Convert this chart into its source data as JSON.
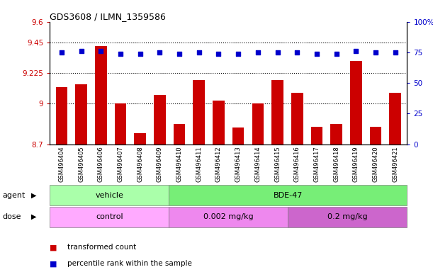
{
  "title": "GDS3608 / ILMN_1359586",
  "samples": [
    "GSM496404",
    "GSM496405",
    "GSM496406",
    "GSM496407",
    "GSM496408",
    "GSM496409",
    "GSM496410",
    "GSM496411",
    "GSM496412",
    "GSM496413",
    "GSM496414",
    "GSM496415",
    "GSM496416",
    "GSM496417",
    "GSM496418",
    "GSM496419",
    "GSM496420",
    "GSM496421"
  ],
  "bar_values": [
    9.12,
    9.14,
    9.42,
    9.0,
    8.78,
    9.06,
    8.85,
    9.17,
    9.02,
    8.82,
    9.0,
    9.17,
    9.08,
    8.83,
    8.85,
    9.31,
    8.83,
    9.08
  ],
  "dot_values": [
    75,
    76,
    76,
    74,
    74,
    75,
    74,
    75,
    74,
    74,
    75,
    75,
    75,
    74,
    74,
    76,
    75,
    75
  ],
  "bar_color": "#cc0000",
  "dot_color": "#0000cc",
  "ylim_left": [
    8.7,
    9.6
  ],
  "ylim_right": [
    0,
    100
  ],
  "yticks_left": [
    8.7,
    9.0,
    9.225,
    9.45,
    9.6
  ],
  "ytick_labels_left": [
    "8.7",
    "9",
    "9.225",
    "9.45",
    "9.6"
  ],
  "yticks_right": [
    0,
    25,
    50,
    75,
    100
  ],
  "ytick_labels_right": [
    "0",
    "25",
    "50",
    "75",
    "100%"
  ],
  "hlines": [
    9.0,
    9.225,
    9.45
  ],
  "agent_labels": [
    {
      "text": "vehicle",
      "start": 0,
      "end": 6,
      "color": "#aaffaa"
    },
    {
      "text": "BDE-47",
      "start": 6,
      "end": 18,
      "color": "#77ee77"
    }
  ],
  "dose_labels": [
    {
      "text": "control",
      "start": 0,
      "end": 6,
      "color": "#ffaaff"
    },
    {
      "text": "0.002 mg/kg",
      "start": 6,
      "end": 12,
      "color": "#ee88ee"
    },
    {
      "text": "0.2 mg/kg",
      "start": 12,
      "end": 18,
      "color": "#cc66cc"
    }
  ],
  "legend_bar_label": "transformed count",
  "legend_dot_label": "percentile rank within the sample",
  "background_color": "#ffffff",
  "plot_bg_color": "#ffffff",
  "tick_label_color_left": "#cc0000",
  "tick_label_color_right": "#0000cc",
  "agent_row_label": "agent",
  "dose_row_label": "dose"
}
